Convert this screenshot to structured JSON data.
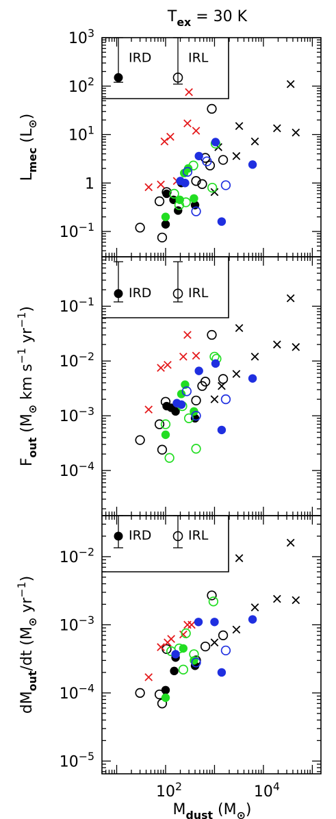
{
  "figure": {
    "title": "T<sub>ex</sub> = 30 K",
    "xlabel": "M<sub>dust</sub> (M<sub>⊙</sub>)"
  },
  "colors": {
    "black": "#000000",
    "red": "#e41a1c",
    "green": "#22dd22",
    "blue": "#1f2fe0"
  },
  "chart_data": [
    {
      "type": "scatter",
      "ylabel": "L<sub>mec</sub> (L<sub>⊙</sub>)",
      "xscale": "log",
      "yscale": "log",
      "xlim": [
        5,
        150000
      ],
      "ylim": [
        0.03,
        1000
      ],
      "yticks": [
        0.1,
        1,
        10,
        100,
        1000
      ],
      "ytick_labels": [
        "10<sup>−1</sup>",
        "1",
        "10<sup>1</sup>",
        "10<sup>2</sup>",
        "10<sup>3</sup>"
      ],
      "legend": {
        "location": "top-left",
        "entries": [
          "IRD",
          "IRL"
        ],
        "ird_errorbar": [
          120,
          1000,
          150
        ],
        "irl_errorbar": [
          110,
          1000,
          150
        ]
      },
      "series": [
        {
          "marker": "filled",
          "color": "black",
          "points": [
            [
              100,
              0.14
            ],
            [
              105,
              0.6
            ],
            [
              145,
              0.45
            ],
            [
              180,
              0.27
            ],
            [
              400,
              0.35
            ],
            [
              210,
              1.0
            ]
          ]
        },
        {
          "marker": "open",
          "color": "black",
          "points": [
            [
              30,
              0.12
            ],
            [
              75,
              0.42
            ],
            [
              85,
              0.075
            ],
            [
              105,
              0.65
            ],
            [
              420,
              1.1
            ],
            [
              560,
              0.95
            ],
            [
              650,
              3.3
            ],
            [
              810,
              2.3
            ],
            [
              880,
              34
            ],
            [
              1500,
              3.0
            ]
          ]
        },
        {
          "marker": "x",
          "color": "black",
          "points": [
            [
              1000,
              0.65
            ],
            [
              1200,
              5.5
            ],
            [
              2800,
              3.6
            ],
            [
              3200,
              15
            ],
            [
              6700,
              7.2
            ],
            [
              19000,
              13.5
            ],
            [
              36000,
              110
            ],
            [
              46000,
              11
            ]
          ]
        },
        {
          "marker": "x",
          "color": "red",
          "points": [
            [
              45,
              0.82
            ],
            [
              80,
              0.93
            ],
            [
              95,
              7.2
            ],
            [
              125,
              9.0
            ],
            [
              170,
              1.1
            ],
            [
              280,
              17
            ],
            [
              300,
              75
            ],
            [
              420,
              12
            ]
          ]
        },
        {
          "marker": "filled",
          "color": "green",
          "points": [
            [
              100,
              0.2
            ],
            [
              195,
              0.45
            ],
            [
              240,
              1.6
            ],
            [
              290,
              2.0
            ],
            [
              380,
              0.48
            ]
          ]
        },
        {
          "marker": "open",
          "color": "green",
          "points": [
            [
              150,
              0.6
            ],
            [
              190,
              0.35
            ],
            [
              260,
              0.4
            ],
            [
              370,
              2.3
            ],
            [
              900,
              0.8
            ],
            [
              1050,
              6.5
            ]
          ]
        },
        {
          "marker": "filled",
          "color": "blue",
          "points": [
            [
              200,
              1.1
            ],
            [
              250,
              1.0
            ],
            [
              480,
              3.6
            ],
            [
              1050,
              7.0
            ],
            [
              1400,
              0.16
            ],
            [
              6000,
              2.4
            ]
          ]
        },
        {
          "marker": "open",
          "color": "blue",
          "points": [
            [
              280,
              1.7
            ],
            [
              420,
              0.26
            ],
            [
              700,
              2.8
            ],
            [
              1700,
              0.9
            ]
          ]
        }
      ]
    },
    {
      "type": "scatter",
      "ylabel": "F<sub>out</sub> (M<sub>⊙</sub> km s<sup>−1</sup> yr<sup>−1</sup>)",
      "xscale": "log",
      "yscale": "log",
      "xlim": [
        5,
        150000
      ],
      "ylim": [
        1.5e-05,
        0.8
      ],
      "yticks": [
        0.0001,
        0.001,
        0.01,
        0.1
      ],
      "ytick_labels": [
        "10<sup>−4</sup>",
        "10<sup>−3</sup>",
        "10<sup>−2</sup>",
        "10<sup>−1</sup>"
      ],
      "legend": {
        "location": "top-left",
        "entries": [
          "IRD",
          "IRL"
        ],
        "ird_errorbar": [
          0.12,
          0.65,
          0.17
        ],
        "irl_errorbar": [
          0.12,
          0.65,
          0.17
        ]
      },
      "series": [
        {
          "marker": "filled",
          "color": "black",
          "points": [
            [
              105,
              0.0015
            ],
            [
              130,
              0.0014
            ],
            [
              160,
              0.0012
            ],
            [
              400,
              0.0009
            ]
          ]
        },
        {
          "marker": "open",
          "color": "black",
          "points": [
            [
              30,
              0.00036
            ],
            [
              75,
              0.0007
            ],
            [
              85,
              0.00024
            ],
            [
              100,
              0.0018
            ],
            [
              420,
              0.0019
            ],
            [
              560,
              0.0035
            ],
            [
              650,
              0.0042
            ],
            [
              880,
              0.03
            ],
            [
              1500,
              0.0047
            ]
          ]
        },
        {
          "marker": "x",
          "color": "black",
          "points": [
            [
              1000,
              0.002
            ],
            [
              1400,
              0.0035
            ],
            [
              2800,
              0.0058
            ],
            [
              3200,
              0.04
            ],
            [
              6700,
              0.012
            ],
            [
              19000,
              0.02
            ],
            [
              36000,
              0.14
            ],
            [
              46000,
              0.018
            ]
          ]
        },
        {
          "marker": "x",
          "color": "red",
          "points": [
            [
              45,
              0.0013
            ],
            [
              80,
              0.0075
            ],
            [
              110,
              0.0085
            ],
            [
              230,
              0.012
            ],
            [
              280,
              0.03
            ],
            [
              420,
              0.0125
            ]
          ]
        },
        {
          "marker": "filled",
          "color": "green",
          "points": [
            [
              100,
              0.00045
            ],
            [
              210,
              0.0025
            ],
            [
              250,
              0.0037
            ],
            [
              380,
              0.0012
            ]
          ]
        },
        {
          "marker": "open",
          "color": "green",
          "points": [
            [
              100,
              0.0007
            ],
            [
              120,
              0.00017
            ],
            [
              220,
              0.0015
            ],
            [
              300,
              0.0009
            ],
            [
              420,
              0.00025
            ],
            [
              1000,
              0.012
            ],
            [
              1100,
              0.011
            ]
          ]
        },
        {
          "marker": "filled",
          "color": "blue",
          "points": [
            [
              170,
              0.0017
            ],
            [
              210,
              0.0016
            ],
            [
              480,
              0.0066
            ],
            [
              1050,
              0.009
            ],
            [
              1400,
              0.00055
            ],
            [
              6000,
              0.0048
            ]
          ]
        },
        {
          "marker": "open",
          "color": "blue",
          "points": [
            [
              270,
              0.0028
            ],
            [
              420,
              0.001
            ],
            [
              1700,
              0.002
            ]
          ]
        }
      ]
    },
    {
      "type": "scatter",
      "ylabel": "dM<sub>out</sub>/dt (M<sub>⊙</sub> yr<sup>−1</sup>)",
      "xscale": "log",
      "yscale": "log",
      "xlim": [
        5,
        150000
      ],
      "ylim": [
        6.5e-06,
        0.04
      ],
      "yticks": [
        1e-05,
        0.0001,
        0.001,
        0.01
      ],
      "ytick_labels": [
        "10<sup>−5</sup>",
        "10<sup>−4</sup>",
        "10<sup>−3</sup>",
        "10<sup>−2</sup>"
      ],
      "legend": {
        "location": "top-left",
        "entries": [
          "IRD",
          "IRL"
        ],
        "ird_errorbar": [
          0.0135,
          0.04,
          0.02
        ],
        "irl_errorbar": [
          0.0135,
          0.04,
          0.02
        ]
      },
      "series": [
        {
          "marker": "filled",
          "color": "black",
          "points": [
            [
              100,
              0.00011
            ],
            [
              150,
              0.00021
            ],
            [
              160,
              0.00033
            ],
            [
              400,
              0.00025
            ]
          ]
        },
        {
          "marker": "open",
          "color": "black",
          "points": [
            [
              30,
              0.0001
            ],
            [
              75,
              9.5e-05
            ],
            [
              85,
              7e-05
            ],
            [
              105,
              0.00044
            ],
            [
              420,
              0.0003
            ],
            [
              650,
              0.00048
            ],
            [
              880,
              0.0027
            ],
            [
              1500,
              0.0007
            ]
          ]
        },
        {
          "marker": "x",
          "color": "black",
          "points": [
            [
              1000,
              0.00055
            ],
            [
              2800,
              0.00085
            ],
            [
              3200,
              0.0095
            ],
            [
              6700,
              0.0018
            ],
            [
              19000,
              0.0024
            ],
            [
              36000,
              0.016
            ],
            [
              46000,
              0.0023
            ]
          ]
        },
        {
          "marker": "x",
          "color": "red",
          "points": [
            [
              45,
              0.00017
            ],
            [
              80,
              0.00047
            ],
            [
              110,
              0.00055
            ],
            [
              130,
              0.00062
            ],
            [
              230,
              0.00072
            ],
            [
              280,
              0.001
            ],
            [
              340,
              0.001
            ]
          ]
        },
        {
          "marker": "filled",
          "color": "green",
          "points": [
            [
              100,
              8.5e-05
            ],
            [
              230,
              0.00045
            ],
            [
              380,
              0.0003
            ]
          ]
        },
        {
          "marker": "open",
          "color": "green",
          "points": [
            [
              130,
              0.00041
            ],
            [
              190,
              0.00045
            ],
            [
              230,
              0.00022
            ],
            [
              260,
              0.00075
            ],
            [
              380,
              0.00037
            ],
            [
              950,
              0.0022
            ]
          ]
        },
        {
          "marker": "filled",
          "color": "blue",
          "points": [
            [
              160,
              0.00037
            ],
            [
              470,
              0.0011
            ],
            [
              1000,
              0.0011
            ],
            [
              1400,
              0.0002
            ],
            [
              6000,
              0.0012
            ]
          ]
        },
        {
          "marker": "open",
          "color": "blue",
          "points": [
            [
              420,
              0.00028
            ],
            [
              1700,
              0.00042
            ]
          ]
        }
      ]
    }
  ]
}
